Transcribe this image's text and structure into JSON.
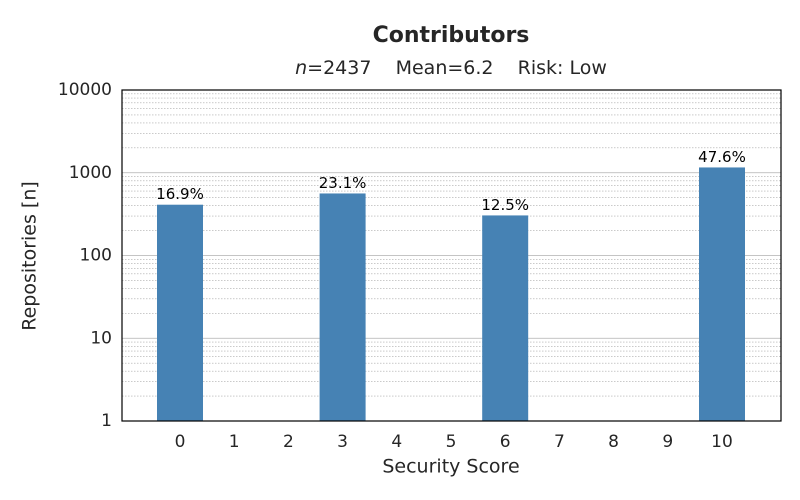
{
  "chart_data": {
    "type": "bar",
    "title": "Contributors",
    "subtitle": {
      "variable": "n",
      "text": "=2437    Mean=6.2    Risk: Low"
    },
    "x_label": "Security Score",
    "y_label": "Repositories [n]",
    "categories": [
      "0",
      "1",
      "2",
      "3",
      "4",
      "5",
      "6",
      "7",
      "8",
      "9",
      "10"
    ],
    "values": [
      411,
      null,
      null,
      562,
      null,
      null,
      305,
      null,
      null,
      null,
      1159
    ],
    "bar_labels": [
      "16.9%",
      null,
      null,
      "23.1%",
      null,
      null,
      "12.5%",
      null,
      null,
      null,
      "47.6%"
    ],
    "color": "#4682b4",
    "log_y": true,
    "ylim": [
      1,
      10000
    ],
    "yticks": [
      1,
      10,
      100,
      1000,
      10000
    ],
    "grid": true
  }
}
